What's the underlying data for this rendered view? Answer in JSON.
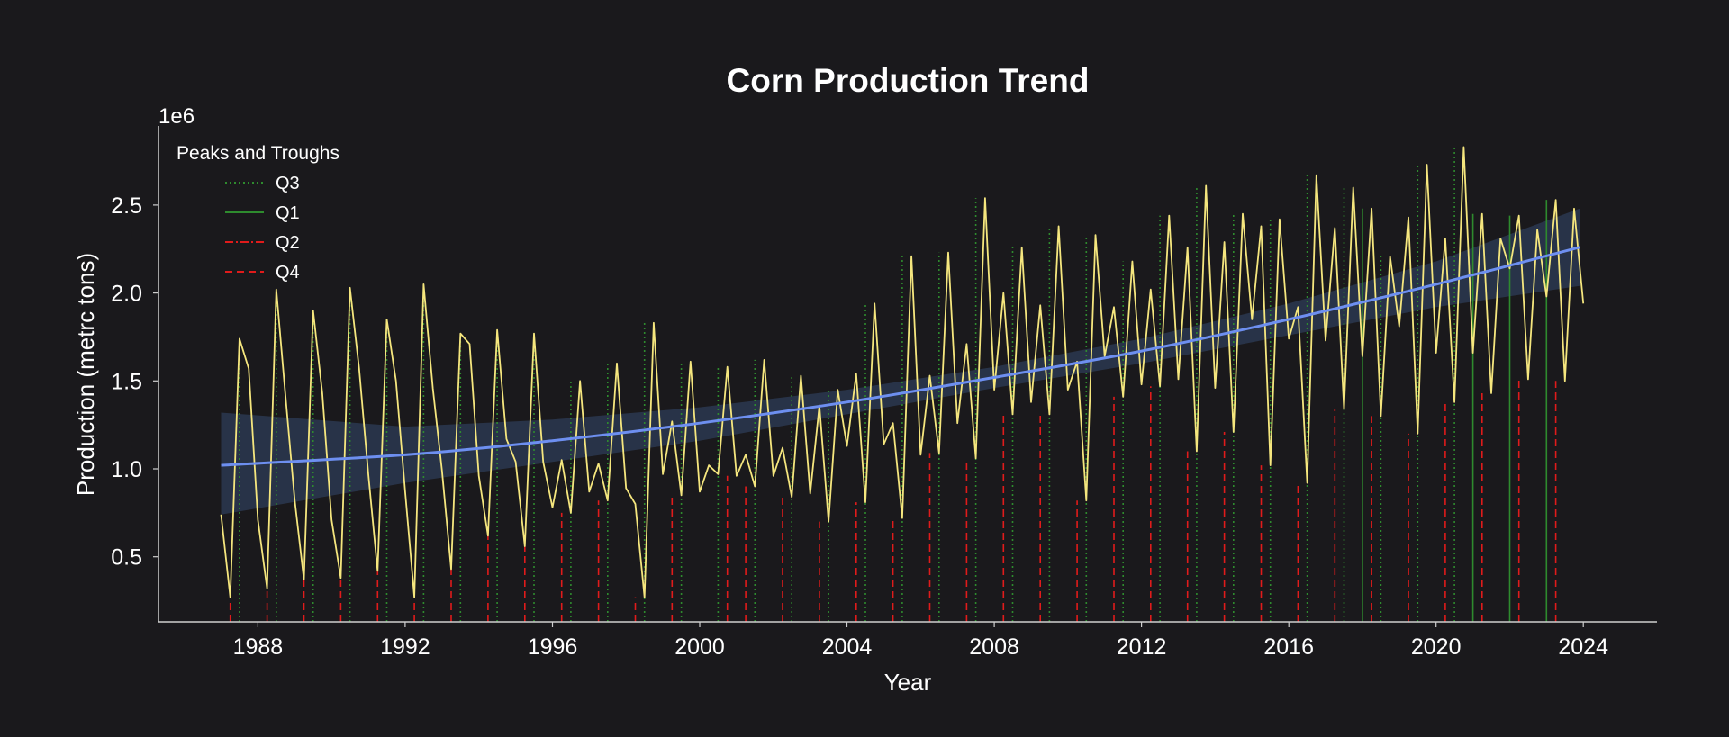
{
  "chart_data": {
    "type": "line",
    "title": "Corn Production Trend",
    "xlabel": "Year",
    "ylabel": "Production (metrc tons)",
    "y_multiplier_label": "1e6",
    "x_ticks": [
      "1988",
      "1992",
      "1996",
      "2000",
      "2004",
      "2008",
      "2012",
      "2016",
      "2020",
      "2024"
    ],
    "y_ticks": [
      "0.5",
      "1.0",
      "1.5",
      "2.0",
      "2.5"
    ],
    "xlim": [
      1985.3,
      2026.0
    ],
    "ylim": [
      0.13,
      2.95
    ],
    "y_scale": 1000000,
    "grid": false,
    "legend_title": "Peaks and Troughs",
    "legend_position": "top-left",
    "legend": [
      {
        "label": "Q3",
        "style": "dotted",
        "color": "#2e8b2e"
      },
      {
        "label": "Q1",
        "style": "solid",
        "color": "#2e8b2e"
      },
      {
        "label": "Q2",
        "style": "dashdot",
        "color": "#e01b1b"
      },
      {
        "label": "Q4",
        "style": "dashed",
        "color": "#e01b1b"
      }
    ],
    "colors": {
      "background": "#1a191c",
      "production_line": "#f5e67e",
      "trend_line": "#6d8ff0",
      "confidence_band": "#2c3850",
      "text": "#ffffff",
      "axis": "#cfcfcf"
    },
    "series": [
      {
        "kind": "quarterly_production",
        "start_year": 1987,
        "freq": "quarterly",
        "values": [
          0.74,
          0.27,
          1.74,
          1.57,
          0.71,
          0.32,
          2.02,
          1.41,
          0.82,
          0.37,
          1.9,
          1.43,
          0.71,
          0.38,
          2.03,
          1.57,
          0.97,
          0.42,
          1.85,
          1.5,
          0.87,
          0.27,
          2.05,
          1.46,
          0.99,
          0.43,
          1.77,
          1.71,
          0.96,
          0.62,
          1.79,
          1.17,
          1.04,
          0.56,
          1.77,
          1.04,
          0.78,
          1.05,
          0.75,
          1.5,
          0.87,
          1.03,
          0.82,
          1.6,
          0.89,
          0.8,
          0.27,
          1.83,
          0.97,
          1.27,
          0.85,
          1.61,
          0.87,
          1.02,
          0.97,
          1.58,
          0.96,
          1.08,
          0.9,
          1.62,
          0.96,
          1.12,
          0.84,
          1.53,
          0.86,
          1.36,
          0.7,
          1.45,
          1.13,
          1.54,
          0.81,
          1.94,
          1.14,
          1.26,
          0.72,
          2.21,
          1.08,
          1.53,
          1.09,
          2.23,
          1.26,
          1.71,
          1.06,
          2.54,
          1.45,
          2.0,
          1.31,
          2.26,
          1.38,
          1.93,
          1.31,
          2.38,
          1.45,
          1.61,
          0.82,
          2.33,
          1.64,
          1.92,
          1.41,
          2.18,
          1.48,
          2.02,
          1.47,
          2.44,
          1.51,
          2.26,
          1.1,
          2.61,
          1.46,
          2.29,
          1.21,
          2.45,
          1.85,
          2.38,
          1.02,
          2.42,
          1.74,
          1.92,
          0.92,
          2.67,
          1.73,
          2.37,
          1.34,
          2.6,
          1.64,
          2.48,
          1.3,
          2.21,
          1.81,
          2.43,
          1.2,
          2.73,
          1.66,
          2.31,
          1.38,
          2.83,
          1.66,
          2.45,
          1.43,
          2.31,
          2.14,
          2.44,
          1.51,
          2.36,
          1.98,
          2.53,
          1.5,
          2.48,
          1.94
        ]
      },
      {
        "kind": "trend",
        "x": [
          1987.0,
          1992.0,
          1996.0,
          2000.0,
          2004.0,
          2008.0,
          2012.0,
          2016.0,
          2020.0,
          2023.9
        ],
        "values": [
          1.02,
          1.08,
          1.16,
          1.26,
          1.38,
          1.52,
          1.67,
          1.85,
          2.05,
          2.26
        ],
        "band_upper": [
          1.32,
          1.24,
          1.28,
          1.35,
          1.45,
          1.58,
          1.74,
          1.94,
          2.18,
          2.48
        ],
        "band_lower": [
          0.74,
          0.92,
          1.04,
          1.16,
          1.31,
          1.46,
          1.6,
          1.76,
          1.92,
          2.04
        ]
      }
    ],
    "peak_trough_markers": [
      {
        "legend": "Q4",
        "years": [
          1987.25,
          1988.25,
          1989.25,
          1990.25,
          1991.25,
          1992.25,
          1993.25,
          1994.25,
          1995.25,
          1996.25,
          1997.25,
          1998.25,
          1999.25,
          2000.75,
          2001.25,
          2002.25,
          2003.25,
          2004.25,
          2005.25,
          2006.25,
          2007.25,
          2008.25,
          2009.25,
          2010.25,
          2011.25,
          2012.25,
          2013.25,
          2014.25,
          2015.25,
          2016.25,
          2017.25,
          2018.25,
          2019.25,
          2020.25,
          2021.25,
          2022.25,
          2023.25
        ],
        "values": [
          0.27,
          0.32,
          0.37,
          0.38,
          0.42,
          0.27,
          0.43,
          0.62,
          0.56,
          0.75,
          0.82,
          0.27,
          0.85,
          0.96,
          0.9,
          0.84,
          0.7,
          0.81,
          0.72,
          1.09,
          1.06,
          1.31,
          1.31,
          0.82,
          1.41,
          1.47,
          1.1,
          1.21,
          1.02,
          0.92,
          1.34,
          1.3,
          1.2,
          1.38,
          1.43,
          1.51,
          1.5
        ]
      },
      {
        "legend": "Q3",
        "years": [
          1987.5,
          1988.5,
          1989.5,
          1990.5,
          1991.5,
          1992.5,
          1993.5,
          1994.5,
          1995.5,
          1996.5,
          1997.5,
          1998.5,
          1999.5,
          2000.5,
          2001.5,
          2002.5,
          2003.5,
          2004.5,
          2005.5,
          2006.5,
          2007.5,
          2008.5,
          2009.5,
          2010.5,
          2011.5,
          2012.5,
          2013.5,
          2014.5,
          2015.5,
          2016.5,
          2017.5,
          2018.5,
          2019.5,
          2020.5
        ],
        "values": [
          1.74,
          2.02,
          1.9,
          2.03,
          1.85,
          2.05,
          1.77,
          1.79,
          1.77,
          1.5,
          1.6,
          1.83,
          1.61,
          1.58,
          1.62,
          1.53,
          1.45,
          1.94,
          2.21,
          2.23,
          2.54,
          2.26,
          2.38,
          2.33,
          2.18,
          2.44,
          2.61,
          2.45,
          2.42,
          2.67,
          2.6,
          2.21,
          2.73,
          2.83
        ]
      },
      {
        "legend": "Q1",
        "years": [
          2018.0,
          2021.0,
          2022.0,
          2023.0
        ],
        "values": [
          2.48,
          2.45,
          2.44,
          2.53
        ]
      }
    ]
  }
}
